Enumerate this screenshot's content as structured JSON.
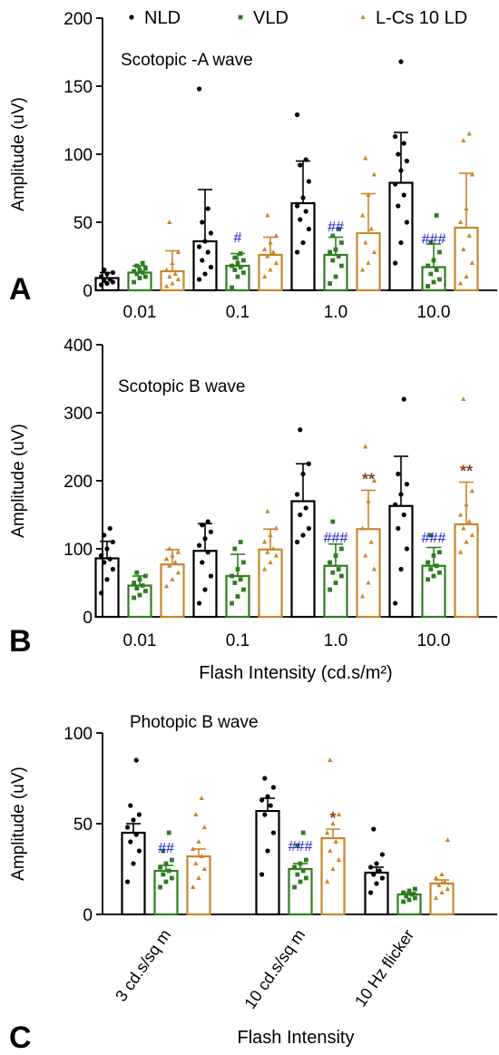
{
  "legend": {
    "items": [
      {
        "label": "NLD",
        "color": "#000000",
        "marker": "circle"
      },
      {
        "label": "VLD",
        "color": "#2e7d1f",
        "marker": "square"
      },
      {
        "label": "L-Cs 10 LD",
        "color": "#c8862a",
        "marker": "triangle"
      }
    ]
  },
  "colors": {
    "nld": "#000000",
    "vld": "#2e7d1f",
    "lcs": "#c8862a",
    "hash": "#1a1acc",
    "star": "#8b4513"
  },
  "chart_data": [
    {
      "type": "bar",
      "panel_label": "A",
      "title": "Scotopic -A wave",
      "xlabel": "",
      "ylabel": "Amplitude (uV)",
      "ylim": [
        0,
        200
      ],
      "yticks": [
        0,
        50,
        100,
        150,
        200
      ],
      "categories": [
        "0.01",
        "0.1",
        "1.0",
        "10.0"
      ],
      "series": [
        {
          "name": "NLD",
          "values": [
            9,
            36,
            64,
            79
          ],
          "errors": [
            4,
            38,
            31,
            37
          ],
          "points": [
            [
              4,
              5,
              6,
              7,
              8,
              10,
              12,
              13,
              15
            ],
            [
              8,
              12,
              17,
              22,
              28,
              32,
              36,
              42,
              50,
              60,
              148
            ],
            [
              28,
              35,
              45,
              52,
              58,
              62,
              68,
              80,
              92,
              96,
              129
            ],
            [
              20,
              35,
              50,
              62,
              70,
              78,
              88,
              95,
              100,
              108,
              113,
              168
            ]
          ]
        },
        {
          "name": "VLD",
          "values": [
            13,
            18,
            26,
            17
          ],
          "errors": [
            5,
            9,
            13,
            17
          ],
          "points": [
            [
              6,
              9,
              10,
              12,
              13,
              14,
              15,
              16,
              18,
              20
            ],
            [
              2,
              10,
              13,
              15,
              17,
              18,
              20,
              22,
              24,
              27
            ],
            [
              5,
              10,
              18,
              22,
              25,
              28,
              30,
              35,
              40,
              45
            ],
            [
              3,
              6,
              8,
              12,
              15,
              18,
              22,
              28,
              35,
              55
            ]
          ]
        },
        {
          "name": "L-Cs 10 LD",
          "values": [
            14,
            26,
            42,
            46
          ],
          "errors": [
            15,
            13,
            29,
            40
          ],
          "points": [
            [
              3,
              5,
              8,
              10,
              12,
              15,
              20,
              28,
              50
            ],
            [
              10,
              15,
              20,
              25,
              28,
              30,
              35,
              40,
              55
            ],
            [
              15,
              20,
              28,
              35,
              45,
              55,
              70,
              85,
              97
            ],
            [
              5,
              10,
              20,
              30,
              40,
              50,
              60,
              85,
              110,
              115
            ]
          ]
        }
      ],
      "annotations": [
        {
          "text": "#",
          "category": "0.1",
          "series": "VLD"
        },
        {
          "text": "##",
          "category": "1.0",
          "series": "VLD"
        },
        {
          "text": "###",
          "category": "10.0",
          "series": "VLD"
        }
      ]
    },
    {
      "type": "bar",
      "panel_label": "B",
      "title": "Scotopic B wave",
      "xlabel": "Flash Intensity (cd.s/m²)",
      "ylabel": "Amplitude (uV)",
      "ylim": [
        0,
        400
      ],
      "yticks": [
        0,
        100,
        200,
        300,
        400
      ],
      "categories": [
        "0.01",
        "0.1",
        "1.0",
        "10.0"
      ],
      "series": [
        {
          "name": "NLD",
          "values": [
            86,
            97,
            170,
            163
          ],
          "errors": [
            25,
            40,
            55,
            73
          ],
          "points": [
            [
              35,
              55,
              70,
              80,
              85,
              90,
              100,
              110,
              120,
              130
            ],
            [
              20,
              40,
              60,
              80,
              95,
              105,
              115,
              125,
              135,
              140
            ],
            [
              110,
              120,
              130,
              150,
              160,
              180,
              210,
              225,
              275
            ],
            [
              20,
              70,
              100,
              130,
              150,
              165,
              180,
              195,
              210,
              320
            ]
          ]
        },
        {
          "name": "VLD",
          "values": [
            46,
            60,
            75,
            75
          ],
          "errors": [
            14,
            32,
            32,
            27
          ],
          "points": [
            [
              28,
              32,
              38,
              42,
              46,
              50,
              55,
              60,
              65
            ],
            [
              20,
              30,
              40,
              50,
              55,
              60,
              70,
              80,
              100,
              110
            ],
            [
              40,
              50,
              60,
              65,
              70,
              80,
              90,
              100,
              140
            ],
            [
              55,
              60,
              65,
              70,
              75,
              80,
              90,
              95,
              120
            ]
          ]
        },
        {
          "name": "L-Cs 10 LD",
          "values": [
            77,
            99,
            129,
            136
          ],
          "errors": [
            22,
            30,
            57,
            62
          ],
          "points": [
            [
              45,
              55,
              65,
              75,
              80,
              85,
              90,
              95,
              100
            ],
            [
              70,
              80,
              90,
              95,
              100,
              110,
              120,
              130,
              155
            ],
            [
              30,
              50,
              70,
              90,
              110,
              130,
              170,
              200,
              250
            ],
            [
              95,
              110,
              120,
              130,
              140,
              150,
              165,
              185,
              320
            ]
          ]
        }
      ],
      "annotations": [
        {
          "text": "###",
          "category": "1.0",
          "series": "VLD"
        },
        {
          "text": "###",
          "category": "10.0",
          "series": "VLD"
        },
        {
          "text": "**",
          "category": "1.0",
          "series": "L-Cs 10 LD"
        },
        {
          "text": "**",
          "category": "10.0",
          "series": "L-Cs 10 LD"
        }
      ]
    },
    {
      "type": "bar",
      "panel_label": "C",
      "title": "Photopic B wave",
      "xlabel": "Flash Intensity",
      "ylabel": "Amplitude (uV)",
      "ylim": [
        0,
        100
      ],
      "yticks": [
        0,
        50,
        100
      ],
      "categories": [
        "3 cd.s/sq m",
        "10 cd.s/sq m",
        "10 Hz flicker"
      ],
      "series": [
        {
          "name": "NLD",
          "values": [
            45,
            57,
            23
          ],
          "errors": [
            5,
            7,
            3
          ],
          "points": [
            [
              18,
              28,
              35,
              40,
              44,
              48,
              52,
              55,
              60,
              85
            ],
            [
              22,
              35,
              45,
              55,
              60,
              63,
              65,
              70,
              75
            ],
            [
              12,
              17,
              20,
              22,
              24,
              26,
              28,
              33,
              47
            ]
          ]
        },
        {
          "name": "VLD",
          "values": [
            24,
            25,
            11
          ],
          "errors": [
            3,
            3,
            1
          ],
          "points": [
            [
              15,
              18,
              20,
              22,
              24,
              26,
              28,
              30,
              35,
              45
            ],
            [
              15,
              18,
              20,
              22,
              24,
              26,
              28,
              30,
              38,
              45
            ],
            [
              7,
              8,
              9,
              10,
              11,
              12,
              13,
              14
            ]
          ]
        },
        {
          "name": "L-Cs 10 LD",
          "values": [
            32,
            42,
            17
          ],
          "errors": [
            4,
            5,
            2
          ],
          "points": [
            [
              15,
              20,
              25,
              28,
              32,
              36,
              40,
              48,
              55,
              64
            ],
            [
              18,
              25,
              30,
              35,
              40,
              45,
              50,
              55,
              85
            ],
            [
              9,
              12,
              14,
              16,
              18,
              20,
              22,
              41
            ]
          ]
        }
      ],
      "annotations": [
        {
          "text": "##",
          "category": "3 cd.s/sq m",
          "series": "VLD"
        },
        {
          "text": "###",
          "category": "10 cd.s/sq m",
          "series": "VLD"
        },
        {
          "text": "*",
          "category": "10 cd.s/sq m",
          "series": "L-Cs 10 LD"
        }
      ]
    }
  ]
}
